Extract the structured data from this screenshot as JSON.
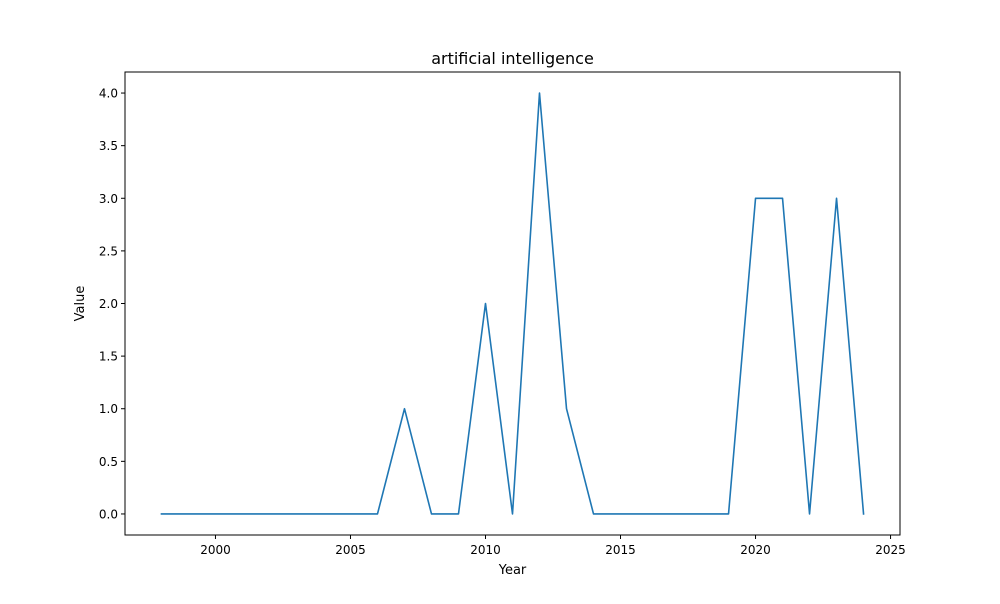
{
  "chart_data": {
    "type": "line",
    "title": "artificial intelligence",
    "xlabel": "Year",
    "ylabel": "Value",
    "xlim": [
      1996.65,
      2025.35
    ],
    "ylim": [
      -0.2,
      4.2
    ],
    "xticks": [
      2000,
      2005,
      2010,
      2015,
      2020,
      2025
    ],
    "xtick_labels": [
      "2000",
      "2005",
      "2010",
      "2015",
      "2020",
      "2025"
    ],
    "yticks": [
      0.0,
      0.5,
      1.0,
      1.5,
      2.0,
      2.5,
      3.0,
      3.5,
      4.0
    ],
    "ytick_labels": [
      "0.0",
      "0.5",
      "1.0",
      "1.5",
      "2.0",
      "2.5",
      "3.0",
      "3.5",
      "4.0"
    ],
    "grid": false,
    "series": [
      {
        "color": "#1f77b4",
        "x": [
          1998,
          1999,
          2000,
          2001,
          2002,
          2003,
          2004,
          2005,
          2006,
          2007,
          2008,
          2009,
          2010,
          2011,
          2012,
          2013,
          2014,
          2015,
          2016,
          2017,
          2018,
          2019,
          2020,
          2021,
          2022,
          2023,
          2024
        ],
        "values": [
          0,
          0,
          0,
          0,
          0,
          0,
          0,
          0,
          0,
          1,
          0,
          0,
          2,
          0,
          4,
          1,
          0,
          0,
          0,
          0,
          0,
          0,
          3,
          3,
          0,
          3,
          0
        ]
      }
    ]
  }
}
